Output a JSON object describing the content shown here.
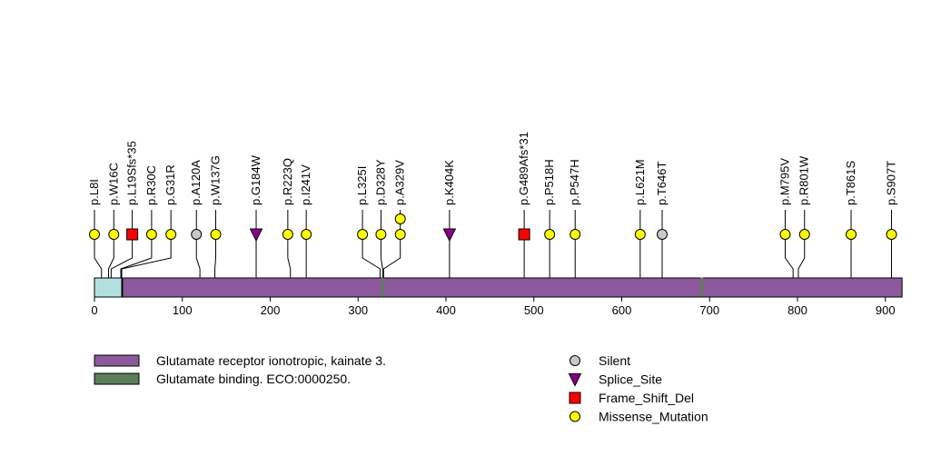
{
  "chart_data": {
    "type": "lollipop",
    "protein_length": 919,
    "x_axis": {
      "ticks": [
        0,
        100,
        200,
        300,
        400,
        500,
        600,
        700,
        800,
        900
      ]
    },
    "domains": [
      {
        "name": "Glutamate receptor ionotropic, kainate 3.",
        "start": 32,
        "end": 919,
        "color": "#8c5a9c"
      },
      {
        "name": "Glutamate binding. ECO:0000250.",
        "start": 327,
        "end": 329,
        "color": "#5a7e5a"
      },
      {
        "name": "Glutamate binding. ECO:0000250.",
        "start": 690,
        "end": 692,
        "color": "#5a7e5a"
      }
    ],
    "signal_region": {
      "start": 1,
      "end": 31,
      "color": "#b2e0e0"
    },
    "mutations": [
      {
        "label": "p.L8I",
        "position": 8,
        "marker_position": 0,
        "type": "Missense_Mutation",
        "count": 1
      },
      {
        "label": "p.W16C",
        "position": 16,
        "marker_position": 22,
        "type": "Missense_Mutation",
        "count": 1
      },
      {
        "label": "p.L19Sfs*35",
        "position": 19,
        "marker_position": 43,
        "type": "Frame_Shift_Del",
        "count": 1
      },
      {
        "label": "p.R30C",
        "position": 30,
        "marker_position": 65,
        "type": "Missense_Mutation",
        "count": 1
      },
      {
        "label": "p.G31R",
        "position": 31,
        "marker_position": 87,
        "type": "Missense_Mutation",
        "count": 1
      },
      {
        "label": "p.A120A",
        "position": 120,
        "marker_position": 116,
        "type": "Silent",
        "count": 1
      },
      {
        "label": "p.W137G",
        "position": 137,
        "marker_position": 138,
        "type": "Missense_Mutation",
        "count": 1
      },
      {
        "label": "p.G184W",
        "position": 184,
        "marker_position": 184,
        "type": "Splice_Site",
        "count": 1
      },
      {
        "label": "p.R223Q",
        "position": 223,
        "marker_position": 220,
        "type": "Missense_Mutation",
        "count": 1
      },
      {
        "label": "p.I241V",
        "position": 241,
        "marker_position": 241,
        "type": "Missense_Mutation",
        "count": 1
      },
      {
        "label": "p.L325I",
        "position": 325,
        "marker_position": 305,
        "type": "Missense_Mutation",
        "count": 1
      },
      {
        "label": "p.D328Y",
        "position": 328,
        "marker_position": 326,
        "type": "Missense_Mutation",
        "count": 1
      },
      {
        "label": "p.A329V",
        "position": 329,
        "marker_position": 348,
        "type": "Missense_Mutation",
        "count": 2
      },
      {
        "label": "p.K404K",
        "position": 404,
        "marker_position": 404,
        "type": "Splice_Site",
        "count": 1
      },
      {
        "label": "p.G489Afs*31",
        "position": 489,
        "marker_position": 489,
        "type": "Frame_Shift_Del",
        "count": 1
      },
      {
        "label": "p.P518H",
        "position": 518,
        "marker_position": 518,
        "type": "Missense_Mutation",
        "count": 1
      },
      {
        "label": "p.P547H",
        "position": 547,
        "marker_position": 547,
        "type": "Missense_Mutation",
        "count": 1
      },
      {
        "label": "p.L621M",
        "position": 621,
        "marker_position": 621,
        "type": "Missense_Mutation",
        "count": 1
      },
      {
        "label": "p.T646T",
        "position": 646,
        "marker_position": 646,
        "type": "Silent",
        "count": 1
      },
      {
        "label": "p.M795V",
        "position": 795,
        "marker_position": 786,
        "type": "Missense_Mutation",
        "count": 1
      },
      {
        "label": "p.R801W",
        "position": 801,
        "marker_position": 808,
        "type": "Missense_Mutation",
        "count": 1
      },
      {
        "label": "p.T861S",
        "position": 861,
        "marker_position": 861,
        "type": "Missense_Mutation",
        "count": 1
      },
      {
        "label": "p.S907T",
        "position": 907,
        "marker_position": 907,
        "type": "Missense_Mutation",
        "count": 1
      }
    ],
    "mutation_colors": {
      "Silent": "#c8c8c8",
      "Splice_Site": "#8b008b",
      "Frame_Shift_Del": "#ff0000",
      "Missense_Mutation": "#ffff00"
    },
    "legend_domains": [
      {
        "label": "Glutamate receptor ionotropic, kainate 3.",
        "color": "#8c5a9c"
      },
      {
        "label": "Glutamate binding. ECO:0000250.",
        "color": "#5a7e5a"
      }
    ],
    "legend_mutations": [
      {
        "label": "Silent",
        "type": "Silent"
      },
      {
        "label": "Splice_Site",
        "type": "Splice_Site"
      },
      {
        "label": "Frame_Shift_Del",
        "type": "Frame_Shift_Del"
      },
      {
        "label": "Missense_Mutation",
        "type": "Missense_Mutation"
      }
    ]
  }
}
